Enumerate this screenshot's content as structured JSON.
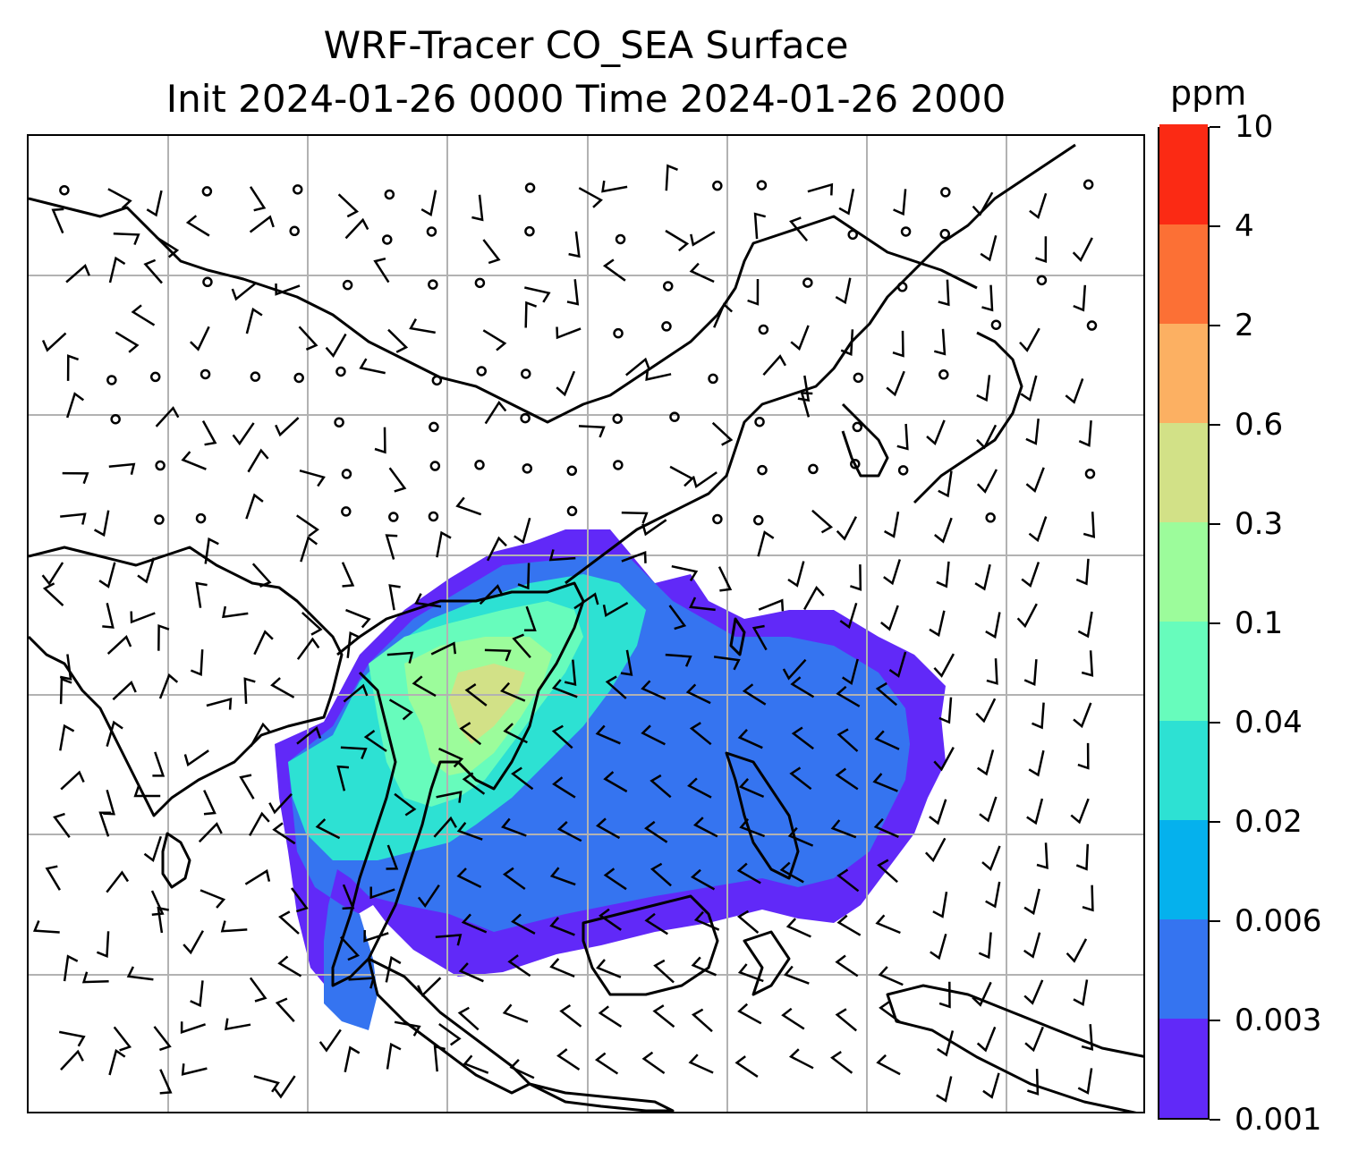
{
  "title": {
    "line1": "WRF-Tracer CO_SEA Surface",
    "line2": "Init 2024-01-26 0000 Time 2024-01-26 2000"
  },
  "colorbar": {
    "unit": "ppm",
    "levels": [
      "0.001",
      "0.003",
      "0.006",
      "0.02",
      "0.04",
      "0.1",
      "0.3",
      "0.6",
      "2",
      "4",
      "10"
    ],
    "colors": [
      "#6129f8",
      "#3574f0",
      "#05b1ed",
      "#2de1d3",
      "#67fcbc",
      "#9cfc9b",
      "#d2e187",
      "#fcb062",
      "#fc7035",
      "#fb2a14"
    ]
  },
  "map": {
    "gridlines": "on",
    "gridline_color": "#b2b2b2",
    "coastline_color": "#000000",
    "wind_barbs": "shown",
    "plume_region": "Southeast Asia"
  }
}
